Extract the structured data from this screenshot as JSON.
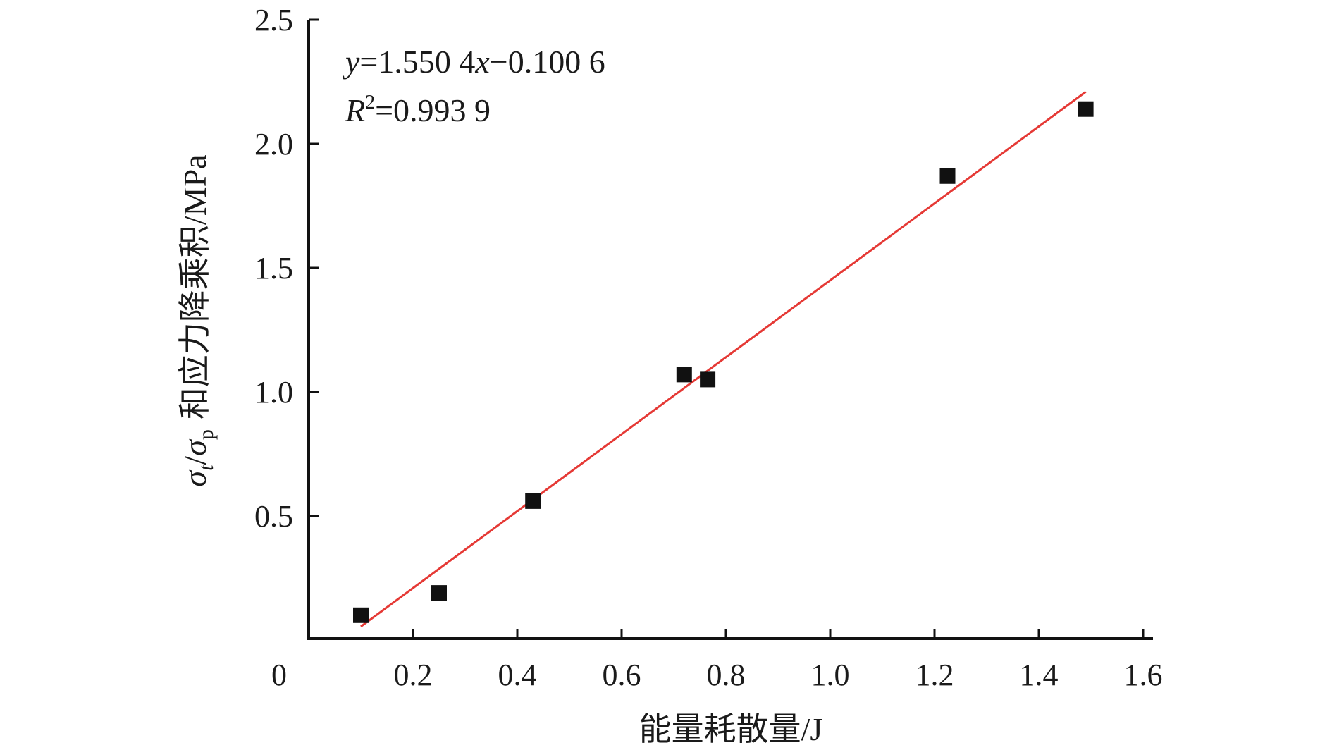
{
  "chart_data": {
    "type": "scatter",
    "xlabel": "能量耗散量/J",
    "ylabel": "和应力降乘积/MPa",
    "ylabel_symbols": {
      "sigma": "σ",
      "sub_t": "t",
      "sub_p": "p"
    },
    "x_ticks": [
      "0",
      "0.2",
      "0.4",
      "0.6",
      "0.8",
      "1.0",
      "1.2",
      "1.4",
      "1.6"
    ],
    "y_ticks": [
      "0.5",
      "1.0",
      "1.5",
      "2.0",
      "2.5"
    ],
    "xlim": [
      0,
      1.6
    ],
    "ylim": [
      -0.05,
      2.5
    ],
    "series": [
      {
        "x": [
          0.1,
          0.25,
          0.43,
          0.72,
          0.765,
          1.225,
          1.49
        ],
        "y": [
          0.1,
          0.19,
          0.56,
          1.07,
          1.05,
          1.87,
          2.14
        ],
        "marker": "square",
        "color": "#111111"
      }
    ],
    "fit": {
      "slope": 1.5504,
      "intercept": -0.1006,
      "x_range": [
        0.1,
        1.49
      ],
      "color": "#e53935"
    },
    "annotations": {
      "equation": {
        "y": "y",
        "eq1": "=1.550 4",
        "x": "x",
        "eq2": "−0.100 6"
      },
      "r2": {
        "R": "R",
        "sup": "2",
        "eq": "=0.993 9"
      }
    },
    "grid": false
  }
}
